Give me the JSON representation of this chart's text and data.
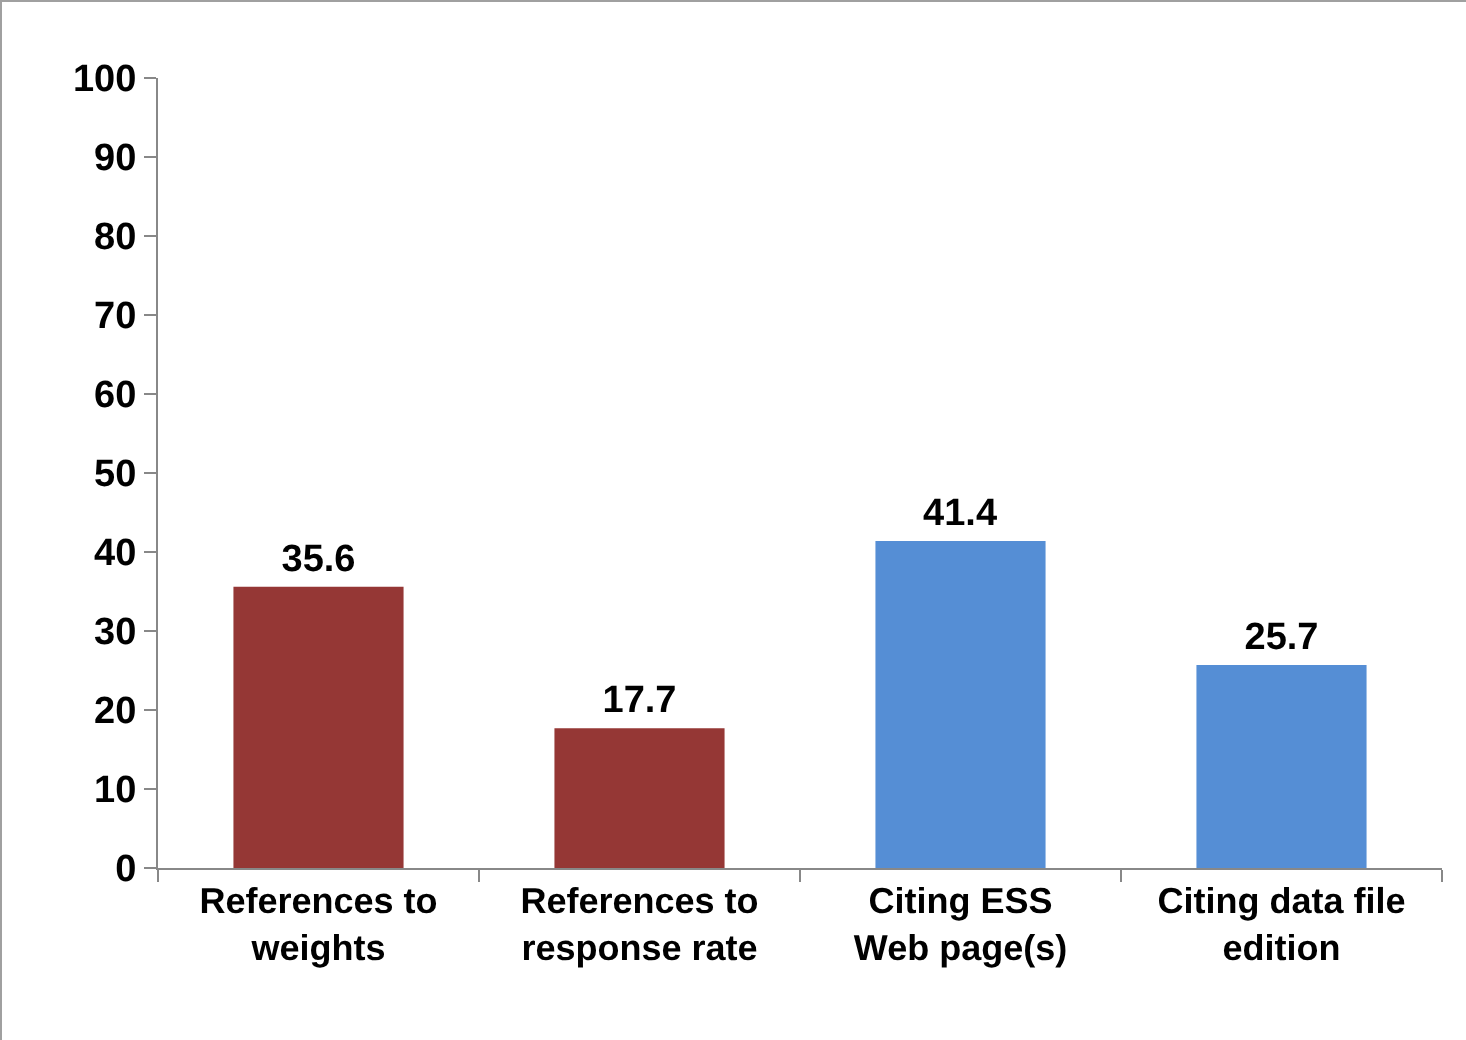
{
  "chart_data": {
    "type": "bar",
    "categories": [
      "References to\nweights",
      "References to\nresponse rate",
      "Citing ESS\nWeb page(s)",
      "Citing data file\nedition"
    ],
    "values": [
      35.6,
      17.7,
      41.4,
      25.7
    ],
    "colors": [
      "#953735",
      "#953735",
      "#558ed5",
      "#558ed5"
    ],
    "ylim": [
      0,
      100
    ],
    "yticks": [
      0,
      10,
      20,
      30,
      40,
      50,
      60,
      70,
      80,
      90,
      100
    ],
    "grid": false,
    "data_labels": true
  }
}
